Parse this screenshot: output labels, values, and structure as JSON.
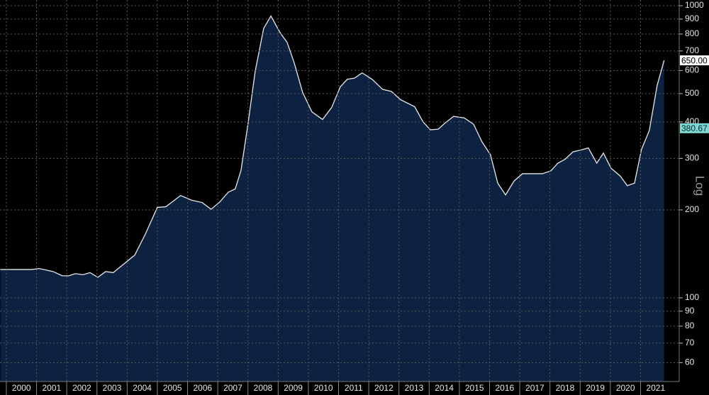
{
  "chart_data": {
    "type": "area",
    "yscale": "log",
    "ylabel": "Log",
    "grid": true,
    "xlim": [
      1999.79,
      2022.28
    ],
    "ylim": [
      51.7,
      1046
    ],
    "xticks": [
      2000,
      2001,
      2002,
      2003,
      2004,
      2005,
      2006,
      2007,
      2008,
      2009,
      2010,
      2011,
      2012,
      2013,
      2014,
      2015,
      2016,
      2017,
      2018,
      2019,
      2020,
      2021
    ],
    "yticks": [
      60,
      70,
      80,
      90,
      100,
      200,
      300,
      400,
      500,
      600,
      700,
      800,
      900,
      1000
    ],
    "series": [
      {
        "color": "#e8e8e8",
        "fill": "#0c2240",
        "x": [
          1999.8,
          2000.85,
          2001.08,
          2001.55,
          2001.85,
          2002.07,
          2002.28,
          2002.54,
          2002.77,
          2003.03,
          2003.29,
          2003.54,
          2003.83,
          2004.25,
          2004.6,
          2005.0,
          2005.28,
          2005.77,
          2006.13,
          2006.48,
          2006.78,
          2007.07,
          2007.35,
          2007.58,
          2007.77,
          2008.0,
          2008.24,
          2008.52,
          2008.76,
          2009.06,
          2009.3,
          2009.53,
          2009.81,
          2010.12,
          2010.47,
          2010.77,
          2011.06,
          2011.29,
          2011.53,
          2011.78,
          2012.11,
          2012.46,
          2012.75,
          2013.05,
          2013.52,
          2013.8,
          2014.04,
          2014.3,
          2014.53,
          2014.81,
          2015.16,
          2015.47,
          2015.75,
          2016.03,
          2016.27,
          2016.53,
          2016.81,
          2017.09,
          2017.39,
          2017.75,
          2018.03,
          2018.26,
          2018.5,
          2018.76,
          2019.04,
          2019.27,
          2019.55,
          2019.77,
          2020.02,
          2020.33,
          2020.56,
          2020.8,
          2021.03,
          2021.29,
          2021.55,
          2021.78
        ],
        "values": [
          125,
          125,
          126,
          123,
          119,
          119,
          121,
          120,
          122,
          117.5,
          123,
          122,
          129,
          140,
          165,
          204,
          205,
          224,
          216,
          212,
          201,
          213,
          230,
          236,
          273,
          393,
          596,
          836,
          922,
          810,
          748,
          638,
          505,
          433,
          408,
          448,
          528,
          560,
          565,
          589,
          560,
          517,
          509,
          477,
          451,
          400,
          376,
          378,
          397,
          418,
          413,
          393,
          342,
          309,
          247,
          225,
          251,
          266,
          266,
          266,
          272,
          289,
          298,
          316,
          321,
          326,
          289,
          313,
          278,
          261,
          242,
          247,
          322,
          374,
          534,
          650
        ]
      }
    ],
    "annotations": [
      {
        "value": 650,
        "label": "650.00",
        "color": "#ffffff",
        "text_color": "#000000"
      },
      {
        "value": 380.67,
        "label": "380.67",
        "color": "#7fd6d2",
        "text_color": "#002a2a"
      }
    ]
  }
}
